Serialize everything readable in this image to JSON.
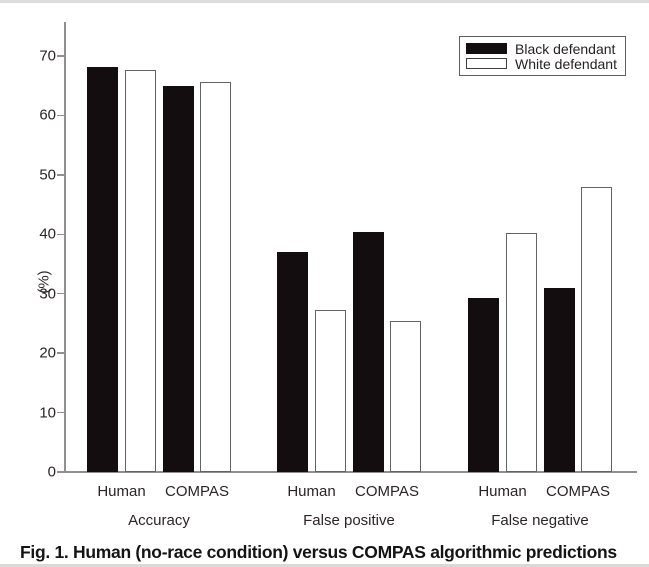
{
  "caption": "Fig. 1. Human (no-race condition) versus COMPAS algorithmic predictions",
  "chart_data": {
    "type": "bar",
    "title": "",
    "xlabel": "",
    "ylabel": "(%)",
    "ylim": [
      0,
      75
    ],
    "yticks": [
      0,
      10,
      20,
      30,
      40,
      50,
      60,
      70
    ],
    "grid": false,
    "legend_position": "top-right",
    "group_labels": [
      "Accuracy",
      "False positive",
      "False negative"
    ],
    "categories": [
      "Human",
      "COMPAS",
      "Human",
      "COMPAS",
      "Human",
      "COMPAS"
    ],
    "series": [
      {
        "name": "Black defendant",
        "fill": "#140d0f",
        "values": [
          68.2,
          64.9,
          37.1,
          40.4,
          29.2,
          30.9
        ]
      },
      {
        "name": "White defendant",
        "fill": "#ffffff",
        "values": [
          67.6,
          65.7,
          27.2,
          25.4,
          40.3,
          47.9
        ]
      }
    ]
  }
}
